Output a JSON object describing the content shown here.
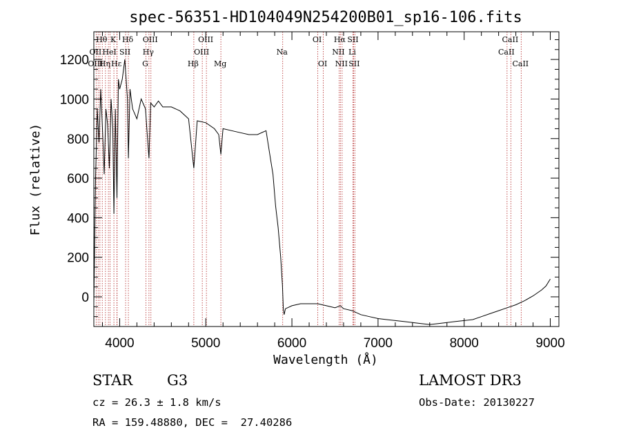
{
  "chart_data": {
    "type": "line",
    "title": "spec-56351-HD104049N254200B01_sp16-106.fits",
    "xlabel": "Wavelength (Å)",
    "ylabel": "Flux (relative)",
    "xlim": [
      3700,
      9100
    ],
    "ylim": [
      -150,
      1340
    ],
    "xticks": [
      4000,
      5000,
      6000,
      7000,
      8000,
      9000
    ],
    "yticks": [
      0,
      200,
      400,
      600,
      800,
      1000,
      1200
    ],
    "series": [
      {
        "name": "spectrum",
        "x": [
          3700,
          3720,
          3740,
          3760,
          3780,
          3800,
          3820,
          3840,
          3860,
          3880,
          3900,
          3920,
          3933,
          3950,
          3968,
          3985,
          4000,
          4030,
          4060,
          4090,
          4101,
          4120,
          4150,
          4200,
          4250,
          4300,
          4320,
          4340,
          4360,
          4400,
          4450,
          4500,
          4600,
          4700,
          4800,
          4861,
          4900,
          5000,
          5100,
          5150,
          5175,
          5200,
          5300,
          5400,
          5500,
          5600,
          5700,
          5750,
          5780,
          5810,
          5840,
          5870,
          5890,
          5900,
          5910,
          5925,
          5950,
          6000,
          6100,
          6200,
          6300,
          6400,
          6500,
          6563,
          6600,
          6700,
          6800,
          6900,
          7000,
          7100,
          7200,
          7300,
          7400,
          7500,
          7600,
          7700,
          7800,
          7900,
          8000,
          8100,
          8200,
          8300,
          8400,
          8500,
          8600,
          8700,
          8800,
          8900,
          8950,
          9000
        ],
        "y": [
          -30,
          600,
          950,
          780,
          1050,
          850,
          620,
          950,
          870,
          650,
          1000,
          850,
          420,
          950,
          500,
          1100,
          1050,
          1100,
          1200,
          1000,
          700,
          1050,
          950,
          900,
          1000,
          950,
          820,
          700,
          980,
          960,
          990,
          960,
          960,
          940,
          900,
          650,
          890,
          880,
          850,
          820,
          720,
          850,
          840,
          830,
          820,
          820,
          840,
          700,
          620,
          460,
          350,
          200,
          60,
          -60,
          -90,
          -60,
          -55,
          -45,
          -35,
          -35,
          -35,
          -45,
          -55,
          -45,
          -60,
          -70,
          -90,
          -100,
          -110,
          -115,
          -120,
          -125,
          -130,
          -135,
          -140,
          -135,
          -130,
          -125,
          -120,
          -115,
          -100,
          -85,
          -70,
          -55,
          -40,
          -20,
          5,
          35,
          55,
          90
        ]
      }
    ],
    "spectral_lines": [
      {
        "label": "Hθ",
        "wl": 3798,
        "row": 0
      },
      {
        "label": "OII",
        "wl": 3727,
        "row": 1
      },
      {
        "label": "OIII",
        "wl": 3727,
        "row": 2
      },
      {
        "label": "Hη",
        "wl": 3835,
        "row": 2
      },
      {
        "label": "HeI",
        "wl": 3889,
        "row": 1
      },
      {
        "label": "K",
        "wl": 3933,
        "row": 0
      },
      {
        "label": "SII",
        "wl": 4069,
        "row": 1
      },
      {
        "label": "Hε",
        "wl": 3970,
        "row": 2
      },
      {
        "label": "Hδ",
        "wl": 4101,
        "row": 0
      },
      {
        "label": "OIII",
        "wl": 4363,
        "row": 0
      },
      {
        "label": "Hγ",
        "wl": 4340,
        "row": 1
      },
      {
        "label": "G",
        "wl": 4305,
        "row": 2
      },
      {
        "label": "Hβ",
        "wl": 4861,
        "row": 2
      },
      {
        "label": "OIII",
        "wl": 5007,
        "row": 0
      },
      {
        "label": "OIII",
        "wl": 4959,
        "row": 1
      },
      {
        "label": "Mg",
        "wl": 5175,
        "row": 2
      },
      {
        "label": "Na",
        "wl": 5893,
        "row": 1
      },
      {
        "label": "OI",
        "wl": 6300,
        "row": 0
      },
      {
        "label": "OI",
        "wl": 6364,
        "row": 2
      },
      {
        "label": "Hα",
        "wl": 6563,
        "row": 0
      },
      {
        "label": "NII",
        "wl": 6548,
        "row": 1
      },
      {
        "label": "NII",
        "wl": 6583,
        "row": 2
      },
      {
        "label": "SII",
        "wl": 6716,
        "row": 0
      },
      {
        "label": "Li",
        "wl": 6708,
        "row": 1
      },
      {
        "label": "SII",
        "wl": 6731,
        "row": 2
      },
      {
        "label": "CaII",
        "wl": 8542,
        "row": 0
      },
      {
        "label": "CaII",
        "wl": 8498,
        "row": 1
      },
      {
        "label": "CaII",
        "wl": 8662,
        "row": 2
      }
    ],
    "line_wavelengths": [
      3727,
      3750,
      3771,
      3798,
      3835,
      3869,
      3889,
      3933,
      3968,
      3970,
      4069,
      4101,
      4305,
      4340,
      4363,
      4861,
      4959,
      5007,
      5175,
      5893,
      6300,
      6364,
      6548,
      6563,
      6583,
      6708,
      6716,
      6731,
      8498,
      8542,
      8662
    ]
  },
  "info": {
    "object_class": "STAR",
    "subclass": "G3",
    "survey": "LAMOST DR3",
    "cz": "cz = 26.3 ± 1.8 km/s",
    "obs_date": "Obs-Date: 20130227",
    "coords": "RA = 159.48880, DEC =  27.40286"
  },
  "colors": {
    "spectrum": "#000000",
    "lines": "#b22222",
    "axes": "#000000"
  }
}
